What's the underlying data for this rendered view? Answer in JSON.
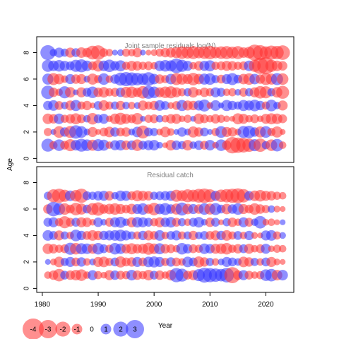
{
  "chart_data": {
    "type": "scatter",
    "subtype": "bubble-residuals",
    "xlabel": "Year",
    "ylabel": "Age",
    "x_ticks": [
      1980,
      1990,
      2000,
      2010,
      2020
    ],
    "y_ticks": [
      0,
      2,
      4,
      6,
      8
    ],
    "xlim": [
      1979,
      2025
    ],
    "ylim": [
      -0.3,
      9.2
    ],
    "colors": {
      "positive": "#3333ff",
      "negative": "#ff3333"
    },
    "opacity": 0.55,
    "years": [
      1981,
      1982,
      1983,
      1984,
      1985,
      1986,
      1987,
      1988,
      1989,
      1990,
      1991,
      1992,
      1993,
      1994,
      1995,
      1996,
      1997,
      1998,
      1999,
      2000,
      2001,
      2002,
      2003,
      2004,
      2005,
      2006,
      2007,
      2008,
      2009,
      2010,
      2011,
      2012,
      2013,
      2014,
      2015,
      2016,
      2017,
      2018,
      2019,
      2020,
      2021,
      2022,
      2023
    ],
    "panels": [
      {
        "title": "Joint sample residuals log(N)",
        "ages": [
          1,
          2,
          3,
          4,
          5,
          6,
          7,
          8
        ],
        "residuals": {
          "1": [
            1.5,
            -0.6,
            1.2,
            -0.7,
            -1.3,
            1.0,
            1.5,
            1.2,
            -1.1,
            1.3,
            1.1,
            -0.5,
            0.9,
            1.0,
            -0.8,
            0.8,
            -1.2,
            0.7,
            0.9,
            1.0,
            0.4,
            -0.3,
            -1.0,
            0.8,
            0.6,
            -1.0,
            0.5,
            0.8,
            -0.7,
            1.0,
            -0.4,
            1.2,
            -0.8,
            -2.4,
            -2.1,
            -1.9,
            -1.6,
            1.3,
            -1.6,
            0.6,
            -1.2,
            1.4,
            -0.5
          ],
          "2": [
            -0.6,
            0.3,
            -1.2,
            0.8,
            -1.3,
            1.6,
            1.2,
            0.4,
            -0.9,
            -0.3,
            -0.7,
            -1.0,
            0.8,
            -0.7,
            -0.8,
            0.4,
            1.0,
            -1.5,
            0.7,
            0.6,
            -0.4,
            -1.0,
            -0.5,
            0.3,
            0.8,
            0.4,
            -1.1,
            -0.8,
            0.7,
            0.3,
            -0.6,
            1.2,
            -0.9,
            -0.8,
            -0.4,
            1.3,
            1.4,
            0.8,
            -1.1,
            1.2,
            -0.6,
            -1.1,
            -0.3
          ],
          "3": [
            -1.0,
            -0.8,
            1.0,
            -0.6,
            -0.8,
            -1.1,
            -0.7,
            0.5,
            -1.2,
            0.7,
            0.9,
            -0.4,
            -1.0,
            -1.3,
            -0.9,
            -0.7,
            -1.2,
            0.3,
            -0.6,
            -0.7,
            0.5,
            -0.5,
            -0.8,
            -0.9,
            -0.4,
            -0.6,
            0.3,
            -1.0,
            -0.7,
            -0.5,
            -0.8,
            -0.6,
            -0.4,
            -0.3,
            -1.1,
            -0.9,
            -0.5,
            -0.7,
            -0.4,
            -0.9,
            -1.1,
            -1.0,
            -0.7
          ],
          "4": [
            0.8,
            1.0,
            -0.7,
            0.5,
            -0.9,
            1.1,
            -0.6,
            -0.8,
            -0.3,
            0.7,
            -1.0,
            -0.6,
            0.6,
            -0.8,
            0.5,
            -0.5,
            0.4,
            -0.9,
            -0.6,
            -0.8,
            1.0,
            0.7,
            -0.4,
            -0.7,
            1.1,
            -0.9,
            -0.8,
            0.9,
            1.3,
            -0.4,
            1.0,
            0.3,
            1.1,
            0.8,
            0.6,
            1.1,
            0.9,
            1.2,
            0.8,
            -0.6,
            1.2,
            0.5,
            -0.9
          ],
          "5": [
            1.6,
            -0.8,
            -0.5,
            1.3,
            -1.0,
            0.3,
            -0.9,
            0.7,
            1.2,
            -0.8,
            -1.0,
            -0.6,
            -0.7,
            0.8,
            -1.1,
            -1.2,
            -0.8,
            -1.4,
            1.5,
            1.2,
            -0.9,
            -1.2,
            -1.3,
            -0.9,
            -0.6,
            0.6,
            -1.0,
            -0.4,
            -0.8,
            -0.6,
            0.9,
            0.7,
            -0.5,
            -0.6,
            0.4,
            -0.7,
            0.6,
            -0.9,
            -1.4,
            -1.3,
            0.6,
            -1.0,
            -1.5
          ],
          "6": [
            1.1,
            -1.3,
            -1.0,
            -0.5,
            0.9,
            -0.8,
            -0.9,
            0.4,
            -1.1,
            -0.6,
            1.2,
            -0.5,
            0.8,
            1.5,
            1.8,
            1.6,
            1.4,
            1.2,
            1.7,
            1.0,
            -0.8,
            -0.6,
            1.0,
            -1.3,
            -1.1,
            -0.9,
            -1.4,
            -1.0,
            1.1,
            1.2,
            0.6,
            -0.7,
            0.9,
            1.3,
            0.7,
            -1.0,
            -1.2,
            1.0,
            -0.8,
            -1.3,
            -1.1,
            1.3,
            -1.2
          ],
          "7": [
            1.3,
            1.0,
            1.2,
            0.9,
            0.7,
            1.3,
            1.5,
            1.0,
            -0.7,
            -1.2,
            1.0,
            1.4,
            0.8,
            1.1,
            -0.6,
            -0.9,
            -0.8,
            -0.6,
            -0.7,
            -0.5,
            1.0,
            1.2,
            1.1,
            1.9,
            1.3,
            0.9,
            -0.5,
            -0.8,
            0.9,
            1.1,
            -0.6,
            -0.7,
            -0.9,
            -0.8,
            -0.6,
            -0.7,
            1.0,
            -1.3,
            -2.4,
            -2.6,
            -1.3,
            -1.0,
            -0.8
          ],
          "8": [
            2.0,
            0.5,
            0.9,
            0.6,
            -0.9,
            0.7,
            -1.0,
            -0.8,
            -1.7,
            -1.9,
            -0.7,
            -0.5,
            0.3,
            0.4,
            -0.6,
            -0.5,
            -0.8,
            0.3,
            -0.3,
            -0.4,
            -0.6,
            -0.8,
            -0.9,
            -1.1,
            -1.4,
            -1.3,
            -1.5,
            -1.2,
            -1.4,
            -1.6,
            -1.2,
            -1.4,
            -1.5,
            -1.3,
            -1.5,
            -1.0,
            -1.2,
            -2.3,
            -2.0,
            -1.4,
            -1.8,
            -1.6,
            -1.9
          ]
        }
      },
      {
        "title": "Residual catch",
        "ages": [
          1,
          2,
          3,
          4,
          5,
          6,
          7
        ],
        "residuals": {
          "1": [
            -0.5,
            -0.8,
            -1.4,
            0.7,
            -0.8,
            -1.0,
            -1.2,
            -0.5,
            0.9,
            -0.6,
            -0.4,
            -0.9,
            0.8,
            -0.7,
            -0.6,
            1.0,
            -0.8,
            -0.6,
            -1.0,
            0.7,
            -0.8,
            -0.5,
            -1.0,
            1.8,
            1.5,
            -0.7,
            -0.9,
            1.3,
            2.0,
            1.8,
            1.6,
            1.4,
            1.9,
            -2.3,
            -0.8,
            0.9,
            -0.7,
            -0.5,
            -0.6,
            1.2,
            1.4,
            -1.0,
            1.0
          ],
          "2": [
            0.3,
            -0.4,
            -1.0,
            0.6,
            0.9,
            -0.7,
            0.8,
            -0.5,
            0.4,
            -0.9,
            -1.0,
            -0.6,
            0.7,
            -1.1,
            -0.7,
            -0.8,
            0.9,
            -0.7,
            1.0,
            1.1,
            0.9,
            -0.6,
            0.8,
            -0.7,
            -0.5,
            1.0,
            0.7,
            -1.1,
            -0.8,
            0.6,
            -0.5,
            0.4,
            0.9,
            0.7,
            0.5,
            -1.0,
            -0.8,
            0.6,
            -0.5,
            0.7,
            -0.9,
            -0.4,
            -0.3
          ],
          "3": [
            -1.0,
            -0.8,
            -0.6,
            -0.7,
            1.3,
            -1.2,
            1.1,
            1.0,
            -0.9,
            1.2,
            0.7,
            -0.6,
            1.2,
            1.0,
            -0.8,
            -1.1,
            -0.8,
            -0.9,
            -1.3,
            -1.0,
            1.1,
            -0.8,
            -0.7,
            -0.5,
            1.2,
            0.8,
            -0.7,
            -0.6,
            1.0,
            0.8,
            -0.9,
            -1.0,
            -1.2,
            -0.6,
            -0.8,
            0.7,
            -0.9,
            -0.5,
            -0.7,
            0.9,
            -0.4,
            -0.6,
            -0.5
          ],
          "4": [
            1.0,
            0.7,
            -0.9,
            0.6,
            -0.5,
            1.2,
            0.8,
            -0.7,
            -1.0,
            -0.8,
            0.8,
            0.9,
            1.0,
            1.2,
            0.9,
            0.6,
            -0.6,
            0.8,
            -0.9,
            -0.7,
            1.0,
            -0.5,
            0.7,
            0.9,
            -0.6,
            0.6,
            -0.8,
            0.5,
            0.7,
            -0.7,
            -0.9,
            0.8,
            -1.0,
            -0.6,
            0.7,
            -0.5,
            0.8,
            -0.4,
            -0.3,
            0.9,
            1.0,
            -0.6,
            0.4
          ],
          "5": [
            0.7,
            0.9,
            -0.6,
            -1.3,
            -0.7,
            0.7,
            -0.9,
            -0.8,
            -0.4,
            0.8,
            0.4,
            -0.7,
            0.9,
            1.1,
            0.5,
            -0.9,
            1.0,
            0.9,
            0.7,
            -0.6,
            -0.9,
            0.8,
            1.0,
            -0.7,
            0.6,
            -0.5,
            0.7,
            1.0,
            0.4,
            -0.8,
            0.7,
            -0.3,
            0.6,
            -0.8,
            -0.5,
            0.9,
            -0.7,
            0.5,
            1.4,
            -0.4,
            -0.5,
            -0.3,
            0.3
          ],
          "6": [
            -0.8,
            1.9,
            1.3,
            -1.2,
            -0.7,
            -1.4,
            -1.1,
            0.7,
            -1.3,
            -1.6,
            -0.8,
            -1.0,
            -1.2,
            -0.9,
            -0.7,
            -1.0,
            0.9,
            1.2,
            -0.8,
            -1.4,
            1.0,
            1.3,
            0.8,
            -1.1,
            1.5,
            -1.0,
            0.9,
            -0.8,
            1.2,
            -1.1,
            1.3,
            0.7,
            -1.0,
            0.8,
            1.2,
            -0.9,
            -0.7,
            -1.2,
            -0.8,
            -0.6,
            0.5,
            -0.4,
            -0.3
          ],
          "7": [
            0.6,
            -1.5,
            -1.8,
            -1.3,
            1.0,
            -1.2,
            -1.8,
            0.7,
            0.6,
            0.8,
            0.9,
            -0.8,
            0.5,
            1.0,
            0.9,
            -0.7,
            -1.1,
            -0.9,
            -0.8,
            0.6,
            0.7,
            0.8,
            0.9,
            -1.3,
            -1.1,
            -1.5,
            -1.3,
            -1.7,
            -1.9,
            -1.5,
            0.9,
            -1.4,
            -1.6,
            -1.8,
            -2.0,
            -1.6,
            0.8,
            -1.0,
            -1.2,
            -0.9,
            -0.8,
            -0.6,
            -0.5
          ]
        }
      }
    ],
    "legend": {
      "placement": "bottom-left",
      "values": [
        -4,
        -3,
        -2,
        -1,
        0,
        1,
        2,
        3
      ],
      "labels": [
        "-4",
        "-3",
        "-2",
        "-1",
        "0",
        "1",
        "2",
        "3"
      ]
    }
  }
}
